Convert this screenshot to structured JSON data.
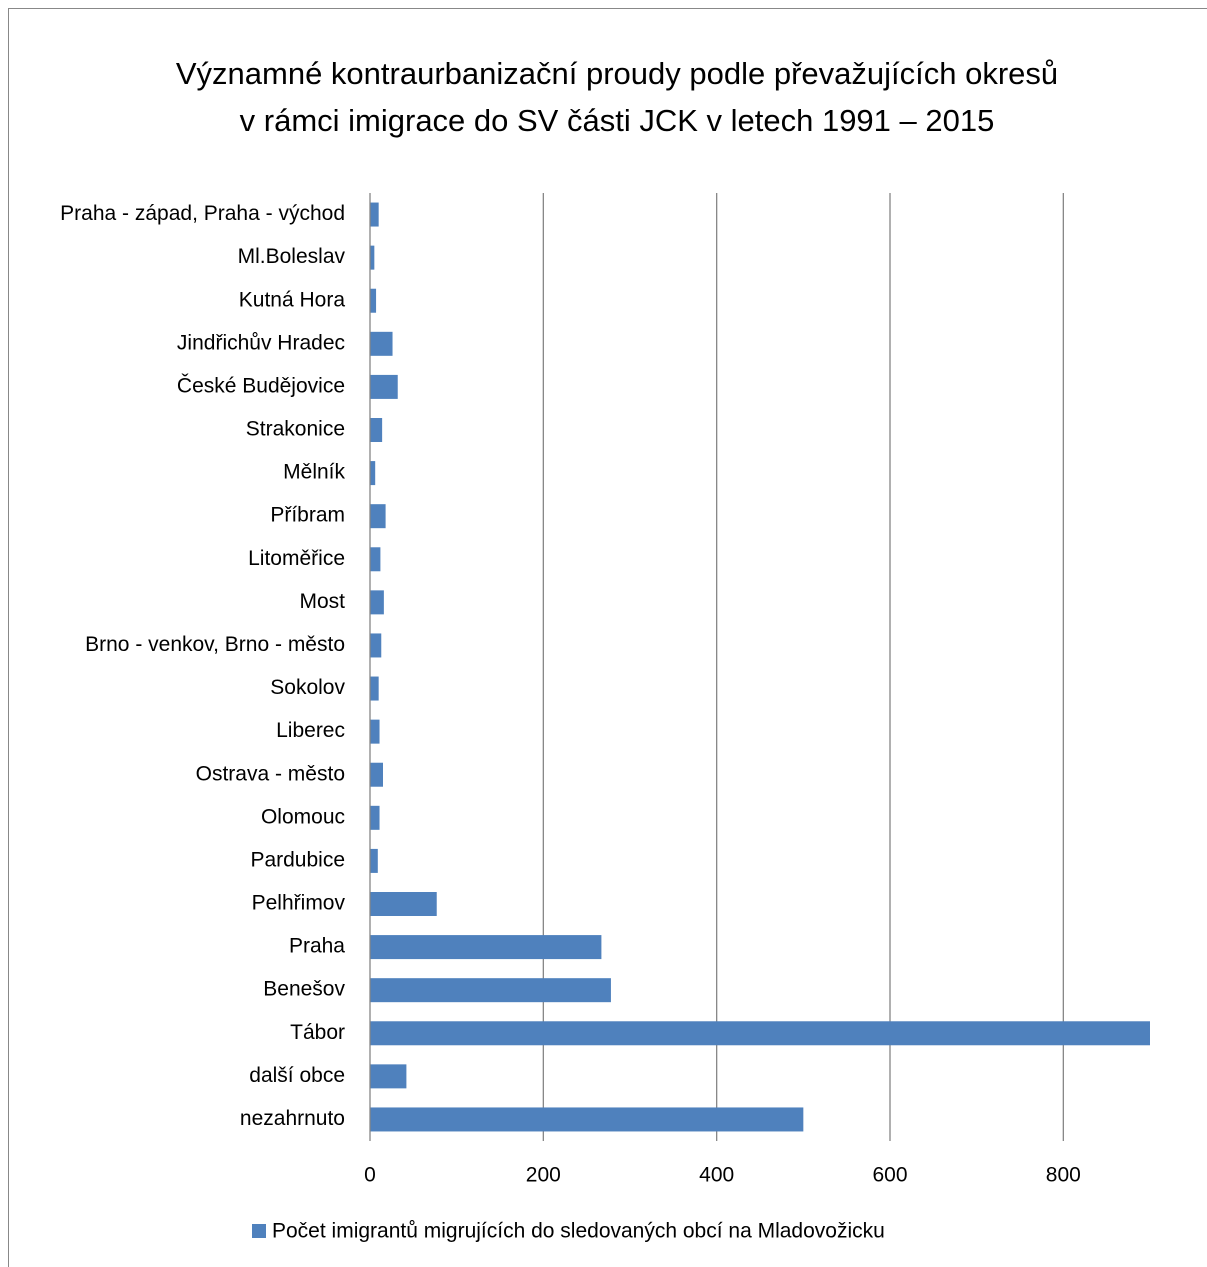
{
  "chart_data": {
    "type": "bar",
    "orientation": "horizontal",
    "title": [
      "Významné kontraurbanizační proudy podle převažujících okresů",
      "v rámci imigrace do SV části JCK v letech 1991 – 2015"
    ],
    "categories": [
      "Praha - západ, Praha - východ",
      "Ml.Boleslav",
      "Kutná Hora",
      "Jindřichův Hradec",
      "České Budějovice",
      "Strakonice",
      "Mělník",
      "Příbram",
      "Litoměřice",
      "Most",
      "Brno - venkov, Brno - město",
      "Sokolov",
      "Liberec",
      "Ostrava - město",
      "Olomouc",
      "Pardubice",
      "Pelhřimov",
      "Praha",
      "Benešov",
      "Tábor",
      "další obce",
      "nezahrnuto"
    ],
    "series": [
      {
        "name": "Počet imigrantů migrujících do sledovaných obcí na Mladovožicku",
        "color": "#4f81bd",
        "values": [
          10,
          5,
          7,
          26,
          32,
          14,
          6,
          18,
          12,
          16,
          13,
          10,
          11,
          15,
          11,
          9,
          77,
          267,
          278,
          900,
          42,
          500
        ]
      }
    ],
    "xlim": [
      0,
      900
    ],
    "xticks": [
      0,
      200,
      400,
      600,
      800
    ],
    "grid": true,
    "legend": "bottom"
  }
}
